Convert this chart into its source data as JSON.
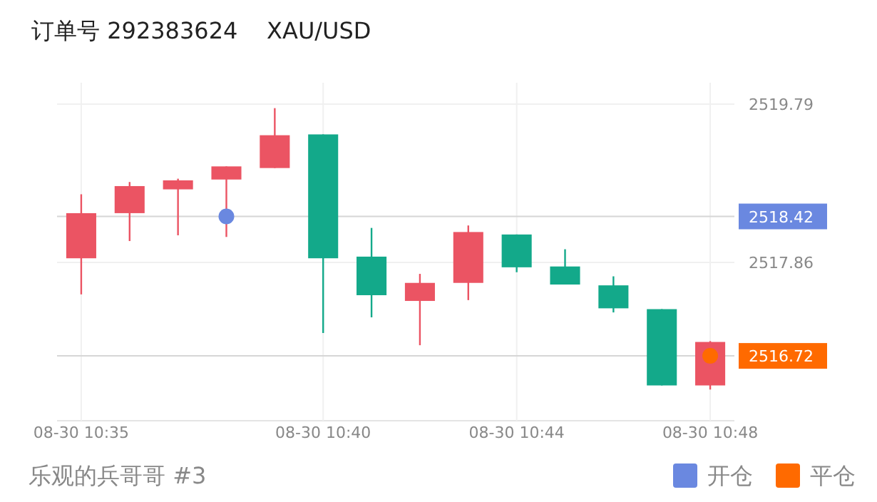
{
  "chart_data": {
    "type": "candlestick",
    "title": "订单号 292383624    XAU/USD",
    "categories": [
      "08-30 10:35",
      null,
      null,
      null,
      null,
      "08-30 10:40",
      null,
      null,
      null,
      "08-30 10:44",
      null,
      null,
      null,
      "08-30 10:48"
    ],
    "ohlc": [
      [
        2517.91,
        2518.69,
        2517.47,
        2518.46
      ],
      [
        2518.46,
        2518.84,
        2518.12,
        2518.79
      ],
      [
        2518.75,
        2518.88,
        2518.19,
        2518.86
      ],
      [
        2518.87,
        2519.03,
        2518.17,
        2519.03
      ],
      [
        2519.01,
        2519.74,
        2519.01,
        2519.41
      ],
      [
        2519.42,
        2519.42,
        2517.0,
        2517.91
      ],
      [
        2517.93,
        2518.28,
        2517.19,
        2517.46
      ],
      [
        2517.39,
        2517.72,
        2516.85,
        2517.61
      ],
      [
        2517.61,
        2518.31,
        2517.4,
        2518.23
      ],
      [
        2518.2,
        2518.2,
        2517.74,
        2517.8
      ],
      [
        2517.81,
        2518.02,
        2517.59,
        2517.59
      ],
      [
        2517.58,
        2517.69,
        2517.25,
        2517.3
      ],
      [
        2517.29,
        2517.29,
        2516.36,
        2516.36
      ],
      [
        2516.36,
        2516.9,
        2516.31,
        2516.89
      ]
    ],
    "colors": [
      "#eb5463",
      "#eb5463",
      "#eb5463",
      "#eb5463",
      "#eb5463",
      "#13a98a",
      "#13a98a",
      "#eb5463",
      "#eb5463",
      "#13a98a",
      "#13a98a",
      "#13a98a",
      "#13a98a",
      "#eb5463"
    ],
    "series": [
      {
        "type": "scatter",
        "name": "开仓",
        "color": "#6a88e0",
        "values": [
          null,
          null,
          null,
          2518.42,
          null,
          null,
          null,
          null,
          null,
          null,
          null,
          null,
          null,
          null
        ]
      },
      {
        "type": "scatter",
        "name": "平仓",
        "color": "#ff6a00",
        "values": [
          null,
          null,
          null,
          null,
          null,
          null,
          null,
          null,
          null,
          null,
          null,
          null,
          null,
          2516.72
        ]
      }
    ],
    "ylim": [
      2515.93,
      2520.05
    ],
    "yticks": [
      2519.79,
      2517.86
    ],
    "ref_lines": [
      {
        "axis": "y",
        "value": 2518.42,
        "label": "2518.42"
      },
      {
        "axis": "y",
        "value": 2516.72,
        "label": "2516.72"
      }
    ],
    "grid": true,
    "annotations": [
      "乐观的兵哥哥 #3"
    ],
    "legend": "bottom right"
  }
}
